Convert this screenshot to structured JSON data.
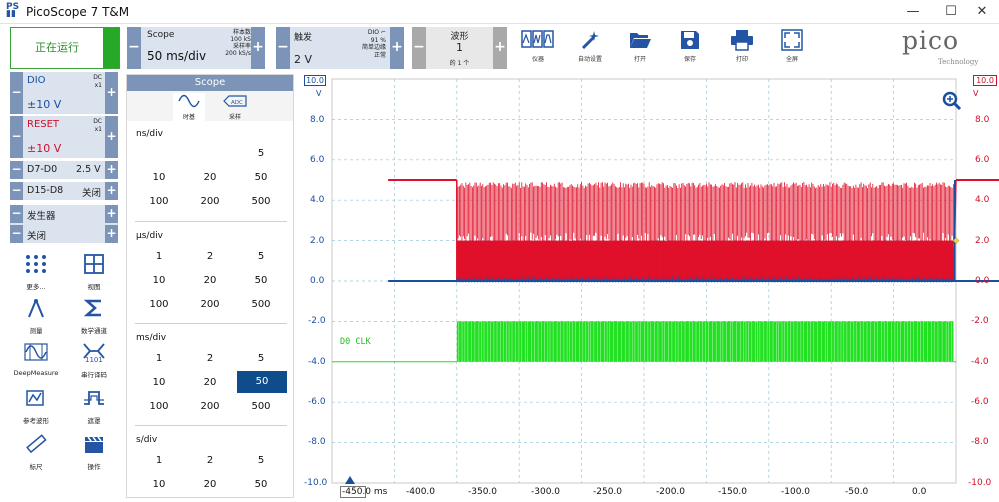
{
  "window": {
    "title": "PicoScope 7 T&M",
    "minimize": "—",
    "maximize": "☐",
    "close": "✕"
  },
  "run_button": {
    "label": "正在运行"
  },
  "scope_ctl": {
    "label": "Scope",
    "value": "50 ms/div",
    "samples_label": "样本数",
    "samples": "100 kS",
    "rate_label": "采样率",
    "rate": "200 kS/s"
  },
  "trigger_ctl": {
    "label": "触发",
    "source": "DIO",
    "level": "2 V",
    "percent": "91 %",
    "type": "简单边缘",
    "mode": "正常"
  },
  "waveform_ctl": {
    "label": "波形",
    "value": "1",
    "of": "的 1 个"
  },
  "toolbar": {
    "instrument": "仪器",
    "autosetup": "自动设置",
    "open": "打开",
    "save": "保存",
    "print": "打印",
    "fullscreen": "全屏"
  },
  "logo": {
    "text": "pico",
    "sub": "Technology"
  },
  "channels": {
    "dio": {
      "name": "DIO",
      "coupling": "DC",
      "probe": "x1",
      "range": "±10 V"
    },
    "reset": {
      "name": "RESET",
      "coupling": "DC",
      "probe": "x1",
      "range": "±10 V"
    },
    "d7d0": {
      "name": "D7-D0",
      "value": "2.5 V"
    },
    "d15d8": {
      "name": "D15-D8",
      "value": "关闭"
    },
    "generator": {
      "name": "发生器",
      "value": "关闭"
    }
  },
  "sidebar": {
    "more": "更多...",
    "views": "视图",
    "measure": "测量",
    "math": "数学通道",
    "deepmeasure": "DeepMeasure",
    "serial": "串行译码",
    "refwave": "参考波形",
    "mask": "遮罩",
    "ruler": "标尺",
    "actions": "操作"
  },
  "scope_panel": {
    "header": "Scope",
    "tab_timebase": "时基",
    "tab_sampling": "采样",
    "ns_div": "ns/div",
    "us_div": "μs/div",
    "ms_div": "ms/div",
    "s_div": "s/div",
    "ns_values": [
      "5",
      "10",
      "20",
      "50",
      "100",
      "200",
      "500"
    ],
    "us_values": [
      "1",
      "2",
      "5",
      "10",
      "20",
      "50",
      "100",
      "200",
      "500"
    ],
    "ms_values": [
      "1",
      "2",
      "5",
      "10",
      "20",
      "50",
      "100",
      "200",
      "500"
    ],
    "s_values": [
      "1",
      "2",
      "5",
      "10",
      "20",
      "50"
    ],
    "selected": "50"
  },
  "plot": {
    "left_axis_box": "10.0",
    "left_unit": "V",
    "right_axis_box": "10.0",
    "right_unit": "V",
    "y_ticks": [
      "8.0",
      "6.0",
      "4.0",
      "2.0",
      "0.0",
      "-2.0",
      "-4.0",
      "-6.0",
      "-8.0",
      "-10.0"
    ],
    "x_ticks": [
      "-450.0 ms",
      "-400.0",
      "-350.0",
      "-300.0",
      "-250.0",
      "-200.0",
      "-150.0",
      "-100.0",
      "-50.0",
      "0.0"
    ],
    "digital_label": "D0 CLK",
    "colors": {
      "reset": "#e0102a",
      "dio": "#1a4fa0",
      "digital": "#22e022",
      "left_axis": "#1a4fa0",
      "right_axis": "#d0102a"
    }
  }
}
